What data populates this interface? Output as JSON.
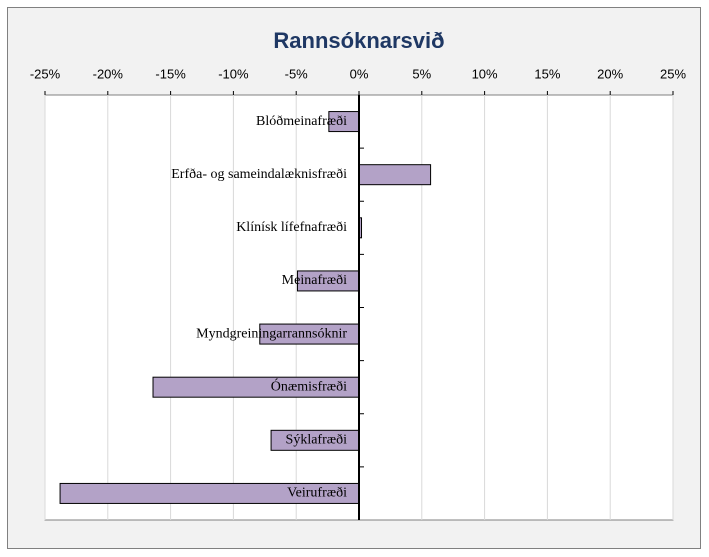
{
  "chart_data": {
    "type": "bar",
    "orientation": "horizontal",
    "title": "Rannsóknarsvið",
    "categories": [
      "Blóðmeinafræði",
      "Erfða- og sameindalæknisfræði",
      "Klínísk lífefnafræði",
      "Meinafræði",
      "Myndgreiningarrannsóknir",
      "Ónæmisfræði",
      "Sýklafræði",
      "Veirufræði"
    ],
    "values": [
      -2.4,
      5.7,
      0.2,
      -4.9,
      -7.9,
      -16.4,
      -7.0,
      -23.8
    ],
    "color": "#b3a2c7",
    "xlim": [
      -25,
      25
    ],
    "xticks": [
      {
        "value": -25,
        "label": "-25%"
      },
      {
        "value": -20,
        "label": "-20%"
      },
      {
        "value": -15,
        "label": "-15%"
      },
      {
        "value": -10,
        "label": "-10%"
      },
      {
        "value": -5,
        "label": "-5%"
      },
      {
        "value": 0,
        "label": "0%"
      },
      {
        "value": 5,
        "label": "5%"
      },
      {
        "value": 10,
        "label": "10%"
      },
      {
        "value": 15,
        "label": "15%"
      },
      {
        "value": 20,
        "label": "20%"
      },
      {
        "value": 25,
        "label": "25%"
      }
    ],
    "grid": true
  }
}
